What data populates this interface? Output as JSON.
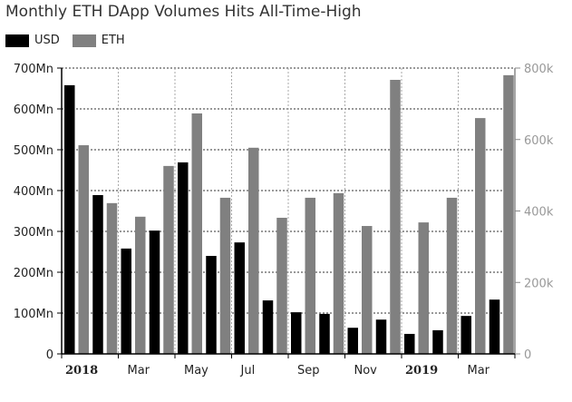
{
  "chart_data": {
    "type": "bar",
    "title": "Monthly ETH DApp Volumes Hits All-Time-High",
    "categories": [
      "Jan 2018",
      "Feb 2018",
      "Mar 2018",
      "Apr 2018",
      "May 2018",
      "Jun 2018",
      "Jul 2018",
      "Aug 2018",
      "Sep 2018",
      "Oct 2018",
      "Nov 2018",
      "Dec 2018",
      "Jan 2019",
      "Feb 2019",
      "Mar 2019",
      "Apr 2019"
    ],
    "x_tick_labels": [
      {
        "label": "2018",
        "bold": true,
        "month_index": 0
      },
      {
        "label": "Mar",
        "bold": false,
        "month_index": 2
      },
      {
        "label": "May",
        "bold": false,
        "month_index": 4
      },
      {
        "label": "Jul",
        "bold": false,
        "month_index": 6
      },
      {
        "label": "Sep",
        "bold": false,
        "month_index": 8
      },
      {
        "label": "Nov",
        "bold": false,
        "month_index": 10
      },
      {
        "label": "2019",
        "bold": true,
        "month_index": 12
      },
      {
        "label": "Mar",
        "bold": false,
        "month_index": 14
      }
    ],
    "series": [
      {
        "name": "USD",
        "axis": "left",
        "color": "#000000",
        "values": [
          658,
          389,
          258,
          302,
          469,
          240,
          273,
          131,
          102,
          98,
          64,
          84,
          49,
          58,
          93,
          133
        ]
      },
      {
        "name": "ETH",
        "axis": "right",
        "color": "#808080",
        "values": [
          584,
          422,
          384,
          526,
          673,
          437,
          577,
          381,
          437,
          450,
          358,
          767,
          368,
          437,
          660,
          780
        ]
      }
    ],
    "y_left": {
      "ylim": [
        0,
        700
      ],
      "unit": "Mn",
      "ticks": [
        "0",
        "100Mn",
        "200Mn",
        "300Mn",
        "400Mn",
        "500Mn",
        "600Mn",
        "700Mn"
      ]
    },
    "y_right": {
      "ylim": [
        0,
        800
      ],
      "unit": "k",
      "ticks": [
        "0",
        "200k",
        "400k",
        "600k",
        "800k"
      ]
    },
    "grid": true,
    "legend_position": "top-left"
  }
}
